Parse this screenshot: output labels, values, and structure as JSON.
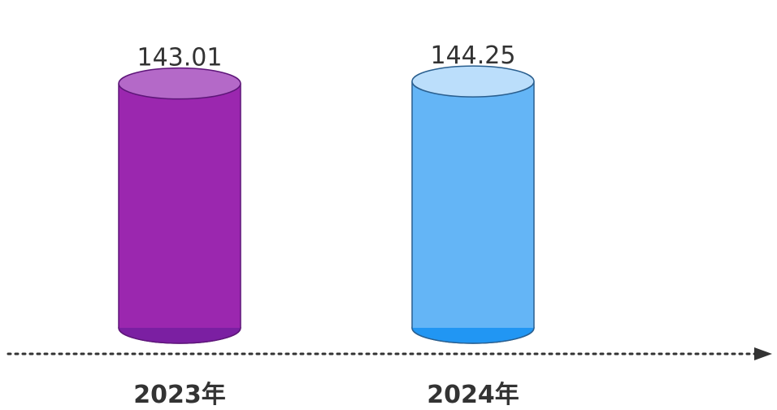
{
  "chart_data": {
    "type": "bar",
    "style": "3d-cylinder",
    "categories": [
      "2023年",
      "2024年"
    ],
    "values": [
      143.01,
      144.25
    ],
    "value_labels": [
      "143.01",
      "144.25"
    ],
    "colors": [
      {
        "body": "#9B27AF",
        "top": "#B469C8",
        "bottom": "#7B1FA2",
        "stroke": "#5E1679"
      },
      {
        "body": "#64B5F6",
        "top": "#BBDEFB",
        "bottom": "#2196F3",
        "stroke": "#2A5F8F"
      }
    ],
    "axis": {
      "style": "dotted-arrow",
      "color": "#333333"
    },
    "grid": false,
    "legend": "none",
    "ylim": [
      0,
      150
    ]
  }
}
